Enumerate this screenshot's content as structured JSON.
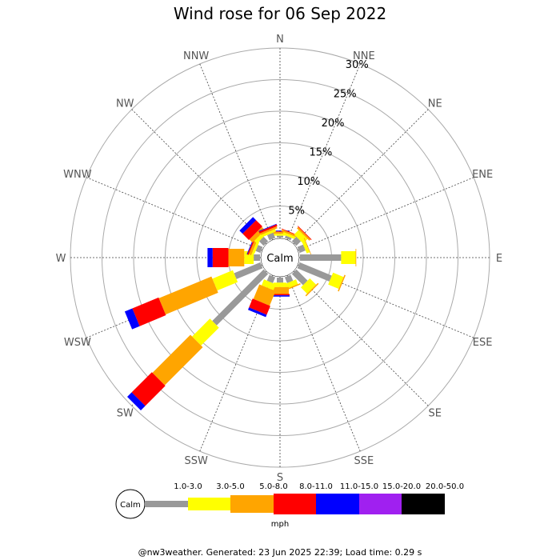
{
  "title": "Wind rose for 06 Sep 2022",
  "footer": "@nw3weather. Generated: 23 Jun 2025 22:39; Load time: 0.29 s",
  "chart_data": {
    "type": "wind-rose",
    "title": "Wind rose for 06 Sep 2022",
    "directions": [
      "N",
      "NNE",
      "NE",
      "ENE",
      "E",
      "ESE",
      "SE",
      "SSE",
      "S",
      "SSW",
      "SW",
      "WSW",
      "W",
      "WNW",
      "NW",
      "NNW"
    ],
    "radial_ticks": [
      "5%",
      "10%",
      "15%",
      "20%",
      "25%",
      "30%"
    ],
    "radial_max_percent": 30,
    "center_label": "Calm",
    "unit": "mph",
    "speed_bins": [
      {
        "label": "1.0-3.0",
        "color": "#999999"
      },
      {
        "label": "3.0-5.0",
        "color": "#ffff00"
      },
      {
        "label": "5.0-8.0",
        "color": "#ffa500"
      },
      {
        "label": "8.0-11.0",
        "color": "#ff0000"
      },
      {
        "label": "11.0-15.0",
        "color": "#0000ff"
      },
      {
        "label": "15.0-20.0",
        "color": "#a020f0"
      },
      {
        "label": "20.0-50.0",
        "color": "#000000"
      }
    ],
    "cumulative_percent": {
      "N": [
        0.3,
        0.6,
        0.9,
        1.0,
        1.1,
        1.1,
        1.1
      ],
      "NNE": [
        0.4,
        0.8,
        1.1,
        1.2,
        1.2,
        1.2,
        1.2
      ],
      "NE": [
        1.0,
        2.0,
        2.3,
        2.4,
        2.4,
        2.4,
        2.4
      ],
      "ENE": [
        1.0,
        1.5,
        1.6,
        1.6,
        1.6,
        1.6,
        1.6
      ],
      "E": [
        6.5,
        8.8,
        8.9,
        8.9,
        8.9,
        8.9,
        8.9
      ],
      "ESE": [
        5.5,
        7.3,
        7.5,
        7.5,
        7.5,
        7.5,
        7.5
      ],
      "SE": [
        2.5,
        3.9,
        4.1,
        4.1,
        4.1,
        4.1,
        4.1
      ],
      "SSE": [
        1.0,
        1.8,
        2.0,
        2.0,
        2.0,
        2.0,
        2.0
      ],
      "S": [
        0.8,
        1.5,
        2.6,
        2.8,
        3.0,
        3.0,
        3.0
      ],
      "SSW": [
        1.0,
        2.0,
        4.5,
        6.0,
        6.4,
        6.4,
        6.4
      ],
      "SW": [
        11.5,
        15.5,
        24.0,
        28.5,
        29.5,
        29.5,
        29.5
      ],
      "WSW": [
        4.5,
        8.0,
        17.0,
        21.5,
        22.8,
        22.8,
        22.8
      ],
      "W": [
        1.0,
        2.5,
        5.0,
        7.5,
        8.3,
        8.3,
        8.3
      ],
      "WNW": [
        0.8,
        1.2,
        1.6,
        1.8,
        1.9,
        1.9,
        1.9
      ],
      "NW": [
        1.0,
        1.6,
        2.3,
        3.7,
        4.4,
        4.4,
        4.4
      ],
      "NNW": [
        0.9,
        1.3,
        1.6,
        1.9,
        2.0,
        2.0,
        2.0
      ]
    }
  }
}
